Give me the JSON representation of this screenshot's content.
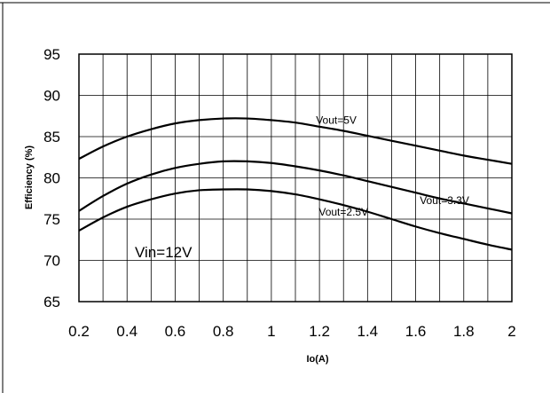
{
  "chart_data": {
    "type": "line",
    "title": "",
    "xlabel": "Io(A)",
    "ylabel": "Efficiency (%)",
    "xlim": [
      0.2,
      2
    ],
    "ylim": [
      65,
      95
    ],
    "x_ticks": [
      "0.2",
      "0.4",
      "0.6",
      "0.8",
      "1",
      "1.2",
      "1.4",
      "1.6",
      "1.8",
      "2"
    ],
    "y_ticks": [
      "65",
      "70",
      "75",
      "80",
      "85",
      "90",
      "95"
    ],
    "grid": true,
    "annotation": "Vin=12V",
    "x": [
      0.2,
      0.3,
      0.4,
      0.5,
      0.6,
      0.7,
      0.8,
      0.9,
      1.0,
      1.1,
      1.2,
      1.3,
      1.4,
      1.5,
      1.6,
      1.7,
      1.8,
      1.9,
      2.0
    ],
    "series": [
      {
        "name": "Vout=5V",
        "values": [
          82.3,
          83.8,
          85.0,
          85.9,
          86.6,
          87.0,
          87.2,
          87.2,
          87.0,
          86.7,
          86.2,
          85.7,
          85.1,
          84.5,
          83.9,
          83.3,
          82.7,
          82.2,
          81.7
        ]
      },
      {
        "name": "Vout=3.3V",
        "values": [
          76.0,
          77.8,
          79.3,
          80.4,
          81.2,
          81.7,
          82.0,
          82.0,
          81.8,
          81.4,
          80.9,
          80.3,
          79.6,
          78.9,
          78.2,
          77.5,
          76.9,
          76.3,
          75.7
        ]
      },
      {
        "name": "Vout=2.5V",
        "values": [
          73.6,
          75.2,
          76.5,
          77.4,
          78.1,
          78.5,
          78.6,
          78.6,
          78.4,
          78.0,
          77.4,
          76.7,
          75.9,
          75.0,
          74.1,
          73.3,
          72.6,
          71.9,
          71.3
        ]
      }
    ],
    "colors": {
      "line": "#000000",
      "grid": "#000000",
      "background": "#ffffff"
    }
  }
}
